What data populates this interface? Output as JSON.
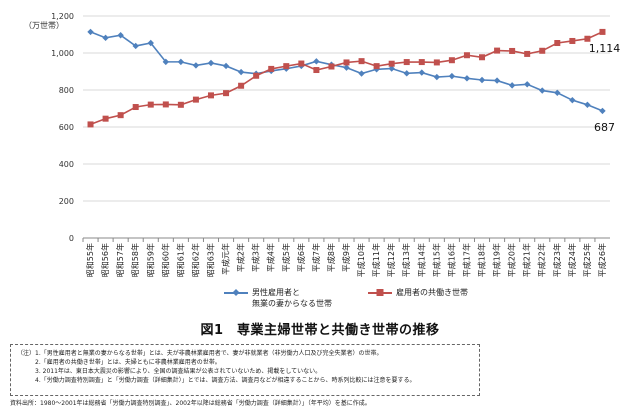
{
  "chart_data": {
    "type": "line",
    "unit_label": "（万世帯）",
    "ylim": [
      0,
      1200
    ],
    "yticks": [
      0,
      200,
      400,
      600,
      800,
      1000,
      1200
    ],
    "ytick_labels": [
      "0",
      "200",
      "400",
      "600",
      "800",
      "1,000",
      "1,200"
    ],
    "categories": [
      "昭和55年",
      "昭和56年",
      "昭和57年",
      "昭和58年",
      "昭和59年",
      "昭和60年",
      "昭和61年",
      "昭和62年",
      "昭和63年",
      "平成元年",
      "平成2年",
      "平成3年",
      "平成4年",
      "平成5年",
      "平成6年",
      "平成7年",
      "平成8年",
      "平成9年",
      "平成10年",
      "平成11年",
      "平成12年",
      "平成13年",
      "平成14年",
      "平成15年",
      "平成16年",
      "平成17年",
      "平成18年",
      "平成19年",
      "平成20年",
      "平成21年",
      "平成22年",
      "平成23年",
      "平成24年",
      "平成25年",
      "平成26年"
    ],
    "series": [
      {
        "name": "男性雇用者と無業の妻からなる世帯",
        "legend_lines": [
          "男性雇用者と",
          "無業の妻からなる世帯"
        ],
        "color": "#4f81bd",
        "marker": "diamond",
        "values": [
          1114,
          1082,
          1096,
          1038,
          1054,
          952,
          952,
          933,
          946,
          930,
          897,
          888,
          903,
          915,
          930,
          955,
          937,
          921,
          889,
          912,
          916,
          890,
          894,
          870,
          875,
          863,
          854,
          851,
          825,
          831,
          797,
          785,
          745,
          720,
          687
        ],
        "end_label": "687"
      },
      {
        "name": "雇用者の共働き世帯",
        "legend_lines": [
          "雇用者の共働き世帯"
        ],
        "color": "#c0504d",
        "marker": "square",
        "values": [
          614,
          645,
          664,
          708,
          721,
          722,
          720,
          748,
          771,
          783,
          823,
          877,
          914,
          929,
          943,
          908,
          927,
          949,
          956,
          929,
          942,
          951,
          951,
          949,
          961,
          988,
          977,
          1013,
          1011,
          995,
          1012,
          1054,
          1065,
          1077,
          1114
        ],
        "end_label": "1,114"
      }
    ],
    "grid": true,
    "legend_position": "bottom"
  },
  "caption": "図1　専業主婦世帯と共働き世帯の推移",
  "notes": [
    "（注）1.「男性雇用者と無業の妻からなる世帯」とは、夫が非農林業雇用者で、妻が非就業者（非労働力人口及び完全失業者）の世帯。",
    "　　　2.「雇用者の共働き世帯」とは、夫婦ともに非農林業雇用者の世帯。",
    "　　　3. 2011年は、東日本大震災の影響により、全国の調査結果が公表されていないため、掲載をしていない。",
    "　　　4.「労働力調査特別調査」と「労働力調査（詳細集計）」とでは、調査方法、調査月などが相違することから、時系列比較には注意を要する。"
  ],
  "source": "資料出所：1980～2001年は総務省「労働力調査特別調査」、2002年以降は総務省「労働力調査（詳細集計）」（年平均）を基に作成。"
}
